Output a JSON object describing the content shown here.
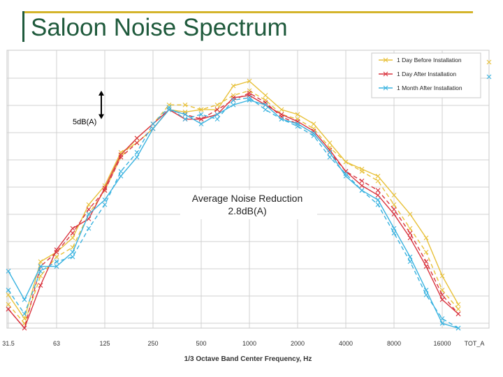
{
  "slide": {
    "title": "Saloon Noise Spectrum"
  },
  "colors": {
    "title": "#1f5a3c",
    "rule": "#d4b42a",
    "grid": "#d0d0d0"
  },
  "chart_data": {
    "type": "line",
    "xlabel": "1/3 Octave Band Center Frequency, Hz",
    "ylabel": "",
    "x": [
      "31.5",
      "40",
      "50",
      "63",
      "80",
      "100",
      "125",
      "160",
      "200",
      "250",
      "315",
      "400",
      "500",
      "630",
      "800",
      "1000",
      "1250",
      "1600",
      "2000",
      "2500",
      "3150",
      "4000",
      "5000",
      "6300",
      "8000",
      "10000",
      "12500",
      "16000",
      "20000"
    ],
    "x_tick_labels": [
      {
        "x": "31.5",
        "label": "31.5"
      },
      {
        "x": "63",
        "label": "63"
      },
      {
        "x": "125",
        "label": "125"
      },
      {
        "x": "250",
        "label": "250"
      },
      {
        "x": "500",
        "label": "500"
      },
      {
        "x": "1000",
        "label": "1000"
      },
      {
        "x": "2000",
        "label": "2000"
      },
      {
        "x": "4000",
        "label": "4000"
      },
      {
        "x": "8000",
        "label": "8000"
      },
      {
        "x": "16000",
        "label": "16000"
      },
      {
        "x": "TOT_A",
        "label": "TOT_A"
      }
    ],
    "ylim": [
      -12,
      105
    ],
    "series": [
      {
        "name": "1 Day Before Installation",
        "color": "#e8c13a",
        "dash": "",
        "values": [
          2,
          -8,
          16,
          20,
          26,
          40,
          48,
          62,
          66,
          72,
          80,
          79,
          80,
          80,
          90,
          92,
          86,
          80,
          78,
          74,
          66,
          58,
          55,
          52,
          44,
          36,
          26,
          10,
          -2
        ]
      },
      {
        "name": "1 Day Before Installation",
        "color": "#e8c13a",
        "dash": "6,4",
        "values": [
          -2,
          -10,
          10,
          18,
          22,
          36,
          46,
          60,
          68,
          74,
          82,
          82,
          80,
          82,
          86,
          88,
          84,
          78,
          76,
          72,
          64,
          58,
          54,
          50,
          40,
          30,
          20,
          4,
          -4
        ]
      },
      {
        "name": "1 Day After Installation",
        "color": "#d9343f",
        "dash": "",
        "values": [
          -4,
          -14,
          6,
          21,
          30,
          34,
          47,
          61,
          68,
          74,
          80,
          76,
          76,
          78,
          85,
          86,
          82,
          78,
          75,
          71,
          63,
          54,
          48,
          44,
          36,
          26,
          14,
          0,
          -6
        ]
      },
      {
        "name": "1 Day After Installation",
        "color": "#d9343f",
        "dash": "6,4",
        "values": [
          -4,
          -12,
          14,
          20,
          28,
          38,
          46,
          60,
          66,
          72,
          80,
          78,
          76,
          80,
          84,
          87,
          83,
          77,
          74,
          70,
          62,
          54,
          50,
          46,
          38,
          28,
          16,
          2,
          -6
        ]
      },
      {
        "name": "1 Month After Installation",
        "color": "#3ab3e0",
        "dash": "",
        "values": [
          12,
          0,
          14,
          14,
          20,
          36,
          42,
          52,
          60,
          72,
          80,
          78,
          74,
          78,
          82,
          84,
          82,
          76,
          74,
          70,
          62,
          52,
          46,
          42,
          30,
          18,
          4,
          -10,
          -12
        ]
      },
      {
        "name": "1 Month After Installation",
        "color": "#3ab3e0",
        "dash": "6,4",
        "values": [
          4,
          -6,
          12,
          16,
          18,
          30,
          40,
          54,
          62,
          74,
          81,
          76,
          78,
          76,
          84,
          85,
          80,
          76,
          73,
          69,
          60,
          53,
          46,
          40,
          28,
          16,
          2,
          -8,
          -12
        ]
      }
    ],
    "legend": {
      "placement": "top-right",
      "entries": [
        {
          "label": "1 Day Before Installation",
          "color": "#e8c13a"
        },
        {
          "label": "1 Day After Installation",
          "color": "#d9343f"
        },
        {
          "label": "1 Month After Installation",
          "color": "#3ab3e0"
        }
      ]
    },
    "annotations": {
      "scale_label": "5dB(A)",
      "scale_span": [
        76,
        88
      ],
      "reduction_line1": "Average Noise Reduction",
      "reduction_line2": "2.8dB(A)"
    },
    "grid": true
  }
}
